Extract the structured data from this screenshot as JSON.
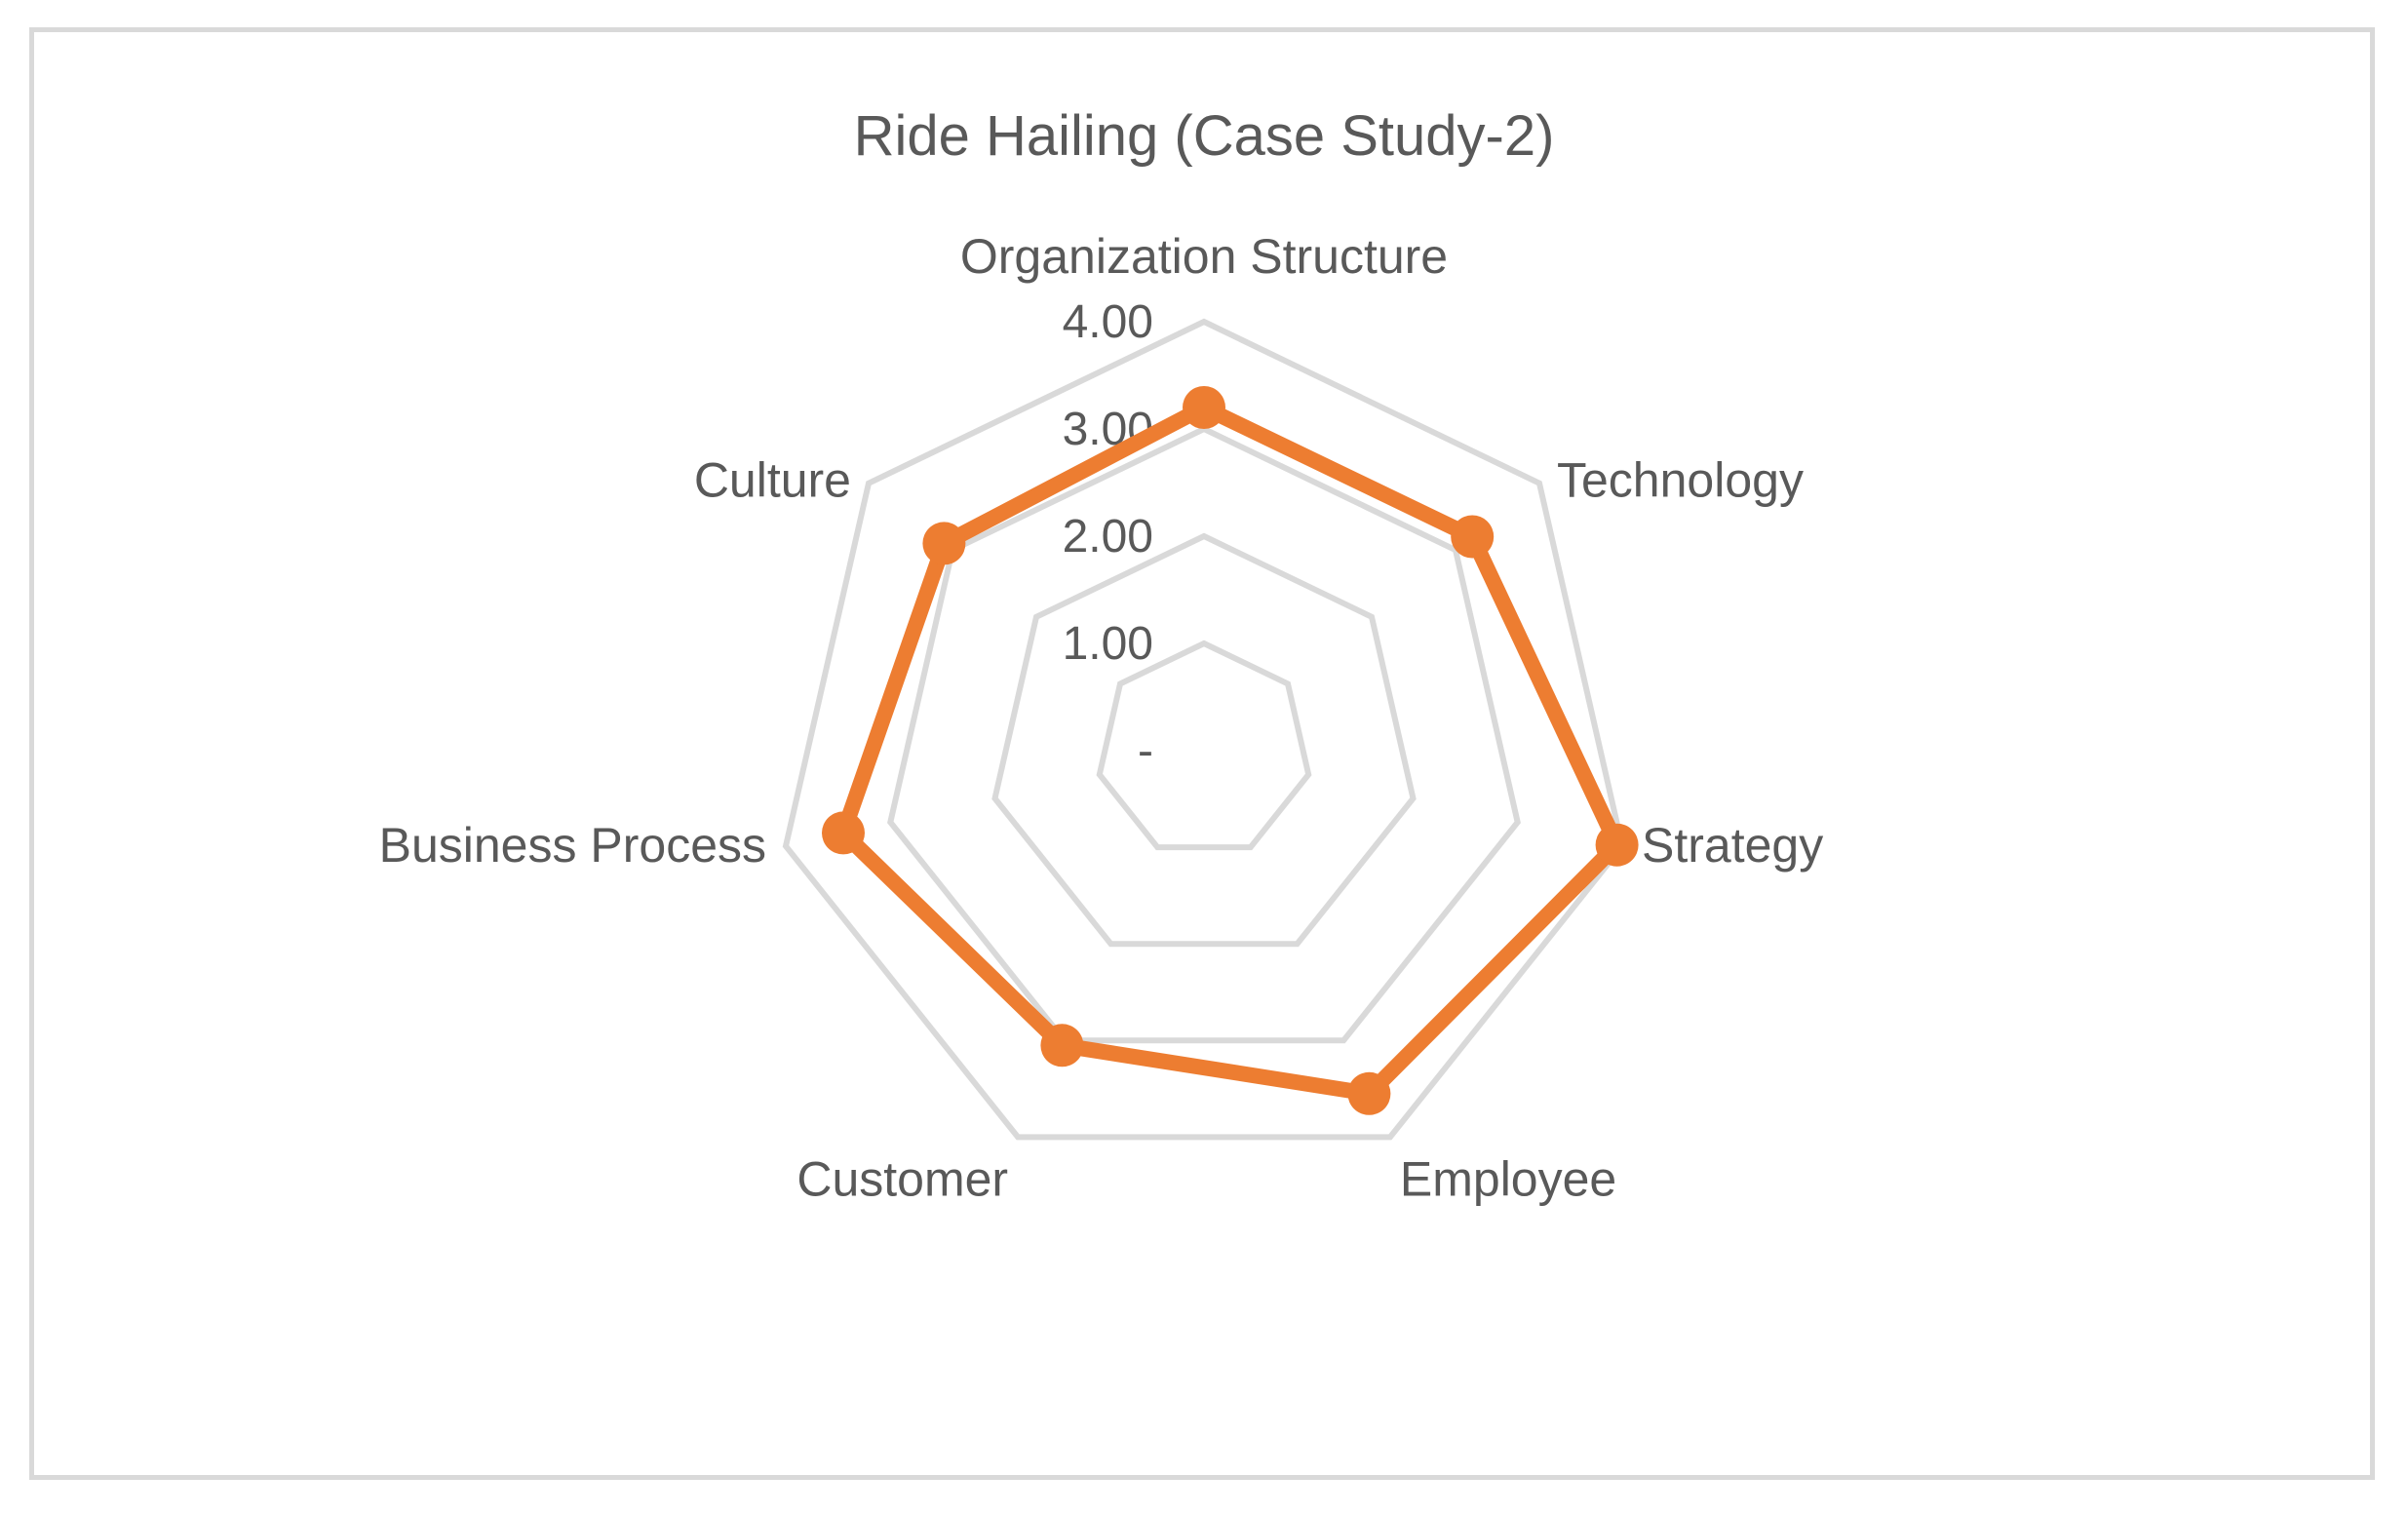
{
  "chart_data": {
    "type": "radar",
    "title": "Ride Hailing (Case Study-2)",
    "categories": [
      "Organization Structure",
      "Technology",
      "Strategy",
      "Employee",
      "Customer",
      "Business Process",
      "Culture"
    ],
    "tick_labels": [
      "-",
      "1.00",
      "2.00",
      "3.00",
      "4.00"
    ],
    "range": [
      0,
      4
    ],
    "ticks": [
      0,
      1,
      2,
      3,
      4
    ],
    "series": [
      {
        "values": [
          3.2,
          3.2,
          3.95,
          3.55,
          3.05,
          3.45,
          3.1
        ],
        "color": "#ed7d31"
      }
    ],
    "grid_color": "#d9d9d9",
    "legend": "none"
  }
}
